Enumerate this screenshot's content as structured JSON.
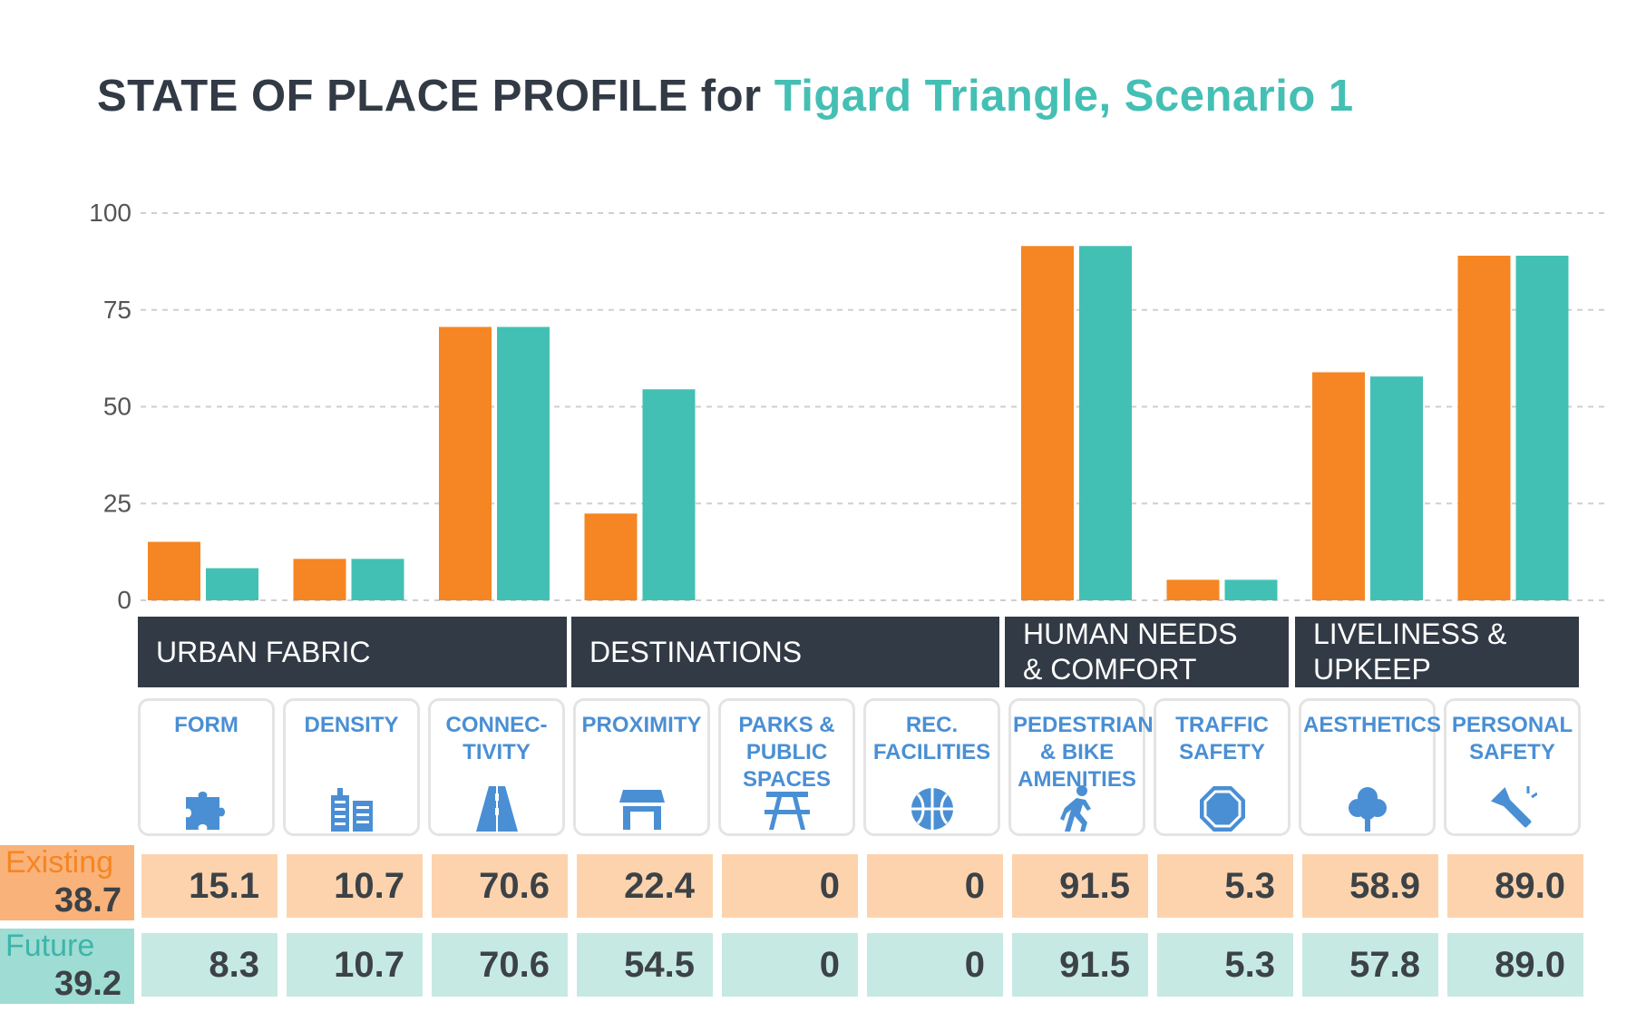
{
  "title": {
    "prefix": "STATE OF PLACE PROFILE for",
    "highlight": "Tigard Triangle, Scenario 1"
  },
  "colors": {
    "existing": "#f58623",
    "future": "#43c0b4",
    "dark": "#323a45",
    "icon": "#4a8fd4",
    "existing_light": "#fdd3ad",
    "future_light": "#c6e9e4"
  },
  "chart_data": {
    "type": "bar",
    "categories": [
      "FORM",
      "DENSITY",
      "CONNEC-TIVITY",
      "PROXIMITY",
      "PARKS & PUBLIC SPACES",
      "REC. FACILITIES",
      "PEDESTRIAN & BIKE AMENITIES",
      "TRAFFIC SAFETY",
      "AESTHETICS",
      "PERSONAL SAFETY"
    ],
    "series": [
      {
        "name": "Existing",
        "values": [
          15.1,
          10.7,
          70.6,
          22.4,
          0,
          0,
          91.5,
          5.3,
          58.9,
          89.0
        ]
      },
      {
        "name": "Future",
        "values": [
          8.3,
          10.7,
          70.6,
          54.5,
          0,
          0,
          91.5,
          5.3,
          57.8,
          89.0
        ]
      }
    ],
    "ylim": [
      0,
      100
    ],
    "yticks": [
      "0",
      "25",
      "50",
      "75",
      "100"
    ],
    "grid": true
  },
  "groups": [
    "URBAN FABRIC",
    "DESTINATIONS",
    "HUMAN NEEDS\n& COMFORT",
    "LIVELINESS &\nUPKEEP"
  ],
  "cards": [
    {
      "label": "FORM",
      "icon": "puzzle-icon"
    },
    {
      "label": "DENSITY",
      "icon": "buildings-icon"
    },
    {
      "label": "CONNEC-\nTIVITY",
      "icon": "road-icon"
    },
    {
      "label": "PROXIMITY",
      "icon": "store-icon"
    },
    {
      "label": "PARKS &\nPUBLIC\nSPACES",
      "icon": "picnic-table-icon"
    },
    {
      "label": "REC.\nFACILITIES",
      "icon": "basketball-icon"
    },
    {
      "label": "PEDESTRIAN\n& BIKE\nAMENITIES",
      "icon": "walking-person-icon"
    },
    {
      "label": "TRAFFIC\nSAFETY",
      "icon": "stop-sign-icon"
    },
    {
      "label": "AESTHETICS",
      "icon": "tree-icon"
    },
    {
      "label": "PERSONAL\nSAFETY",
      "icon": "flashlight-icon"
    }
  ],
  "existing": {
    "label": "Existing",
    "total": "38.7",
    "scores": [
      "15.1",
      "10.7",
      "70.6",
      "22.4",
      "0",
      "0",
      "91.5",
      "5.3",
      "58.9",
      "89.0"
    ]
  },
  "future": {
    "label": "Future",
    "total": "39.2",
    "scores": [
      "8.3",
      "10.7",
      "70.6",
      "54.5",
      "0",
      "0",
      "91.5",
      "5.3",
      "57.8",
      "89.0"
    ]
  }
}
